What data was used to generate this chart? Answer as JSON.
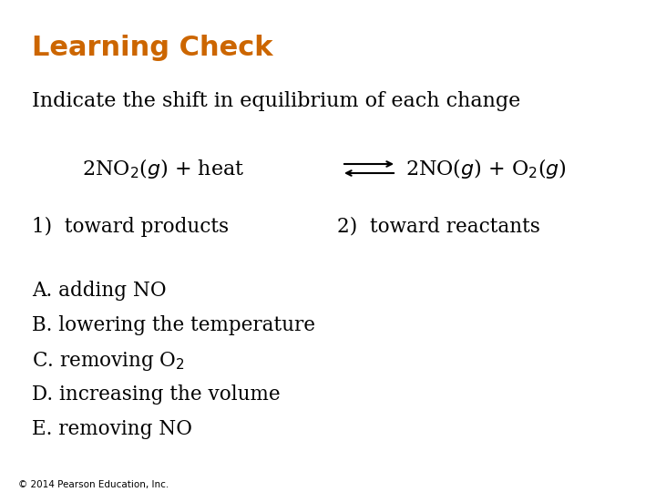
{
  "title": "Learning Check",
  "title_color": "#CC6600",
  "title_fontsize": 22,
  "bg_color": "#FFFFFF",
  "subtitle": "Indicate the shift in equilibrium of each change",
  "subtitle_fontsize": 16,
  "equation_fontsize": 16,
  "options_fontsize": 15.5,
  "answer_fontsize": 15.5,
  "copyright": "© 2014 Pearson Education, Inc.",
  "copyright_fontsize": 7.5,
  "items": [
    "A. adding NO",
    "B. lowering the temperature",
    "C. removing O₂",
    "D. increasing the volume",
    "E. removing NO"
  ]
}
